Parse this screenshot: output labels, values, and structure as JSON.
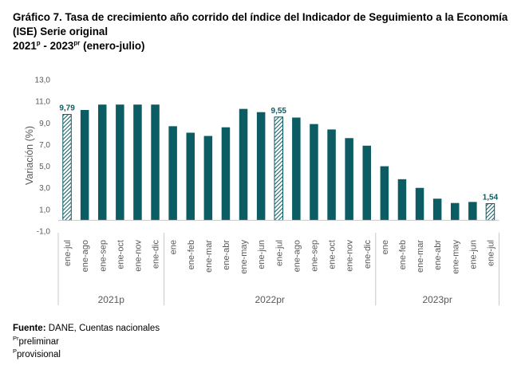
{
  "title": {
    "line1": "Gráfico 7. Tasa de crecimiento año corrido del índice del Indicador de Seguimiento a la Economía",
    "line2": "(ISE) Serie original",
    "line3_year1": "2021",
    "line3_sup1": "p",
    "line3_sep": " - ",
    "line3_year2": "2023",
    "line3_sup2": "pr",
    "line3_rest": " (enero-julio)"
  },
  "chart_data": {
    "type": "bar",
    "ylabel": "Variación (%)",
    "ylim": [
      -1.0,
      13.0
    ],
    "yticks": [
      "13,0",
      "11,0",
      "9,0",
      "7,0",
      "5,0",
      "3,0",
      "1,0",
      "-1,0"
    ],
    "ytick_values": [
      13,
      11,
      9,
      7,
      5,
      3,
      1,
      -1
    ],
    "categories": [
      "ene-jul",
      "ene-ago",
      "ene-sep",
      "ene-oct",
      "ene-nov",
      "ene-dic",
      "ene",
      "ene-feb",
      "ene-mar",
      "ene-abr",
      "ene-may",
      "ene-jun",
      "ene-jul",
      "ene-ago",
      "ene-sep",
      "ene-oct",
      "ene-nov",
      "ene-dic",
      "ene",
      "ene-feb",
      "ene-mar",
      "ene-abr",
      "ene-may",
      "ene-jun",
      "ene-jul"
    ],
    "values": [
      9.79,
      10.2,
      10.7,
      10.7,
      10.7,
      10.7,
      8.7,
      8.1,
      7.8,
      8.6,
      10.3,
      10.0,
      9.55,
      9.5,
      8.9,
      8.4,
      7.6,
      6.9,
      5.0,
      3.8,
      3.0,
      2.0,
      1.6,
      1.7,
      1.54
    ],
    "highlighted": [
      0,
      12,
      24
    ],
    "data_labels": {
      "0": "9,79",
      "12": "9,55",
      "24": "1,54"
    },
    "groups": [
      {
        "label": "2021p",
        "start": 0,
        "end": 5
      },
      {
        "label": "2022pr",
        "start": 6,
        "end": 17
      },
      {
        "label": "2023pr",
        "start": 18,
        "end": 24
      }
    ],
    "colors": {
      "bar": "#0b5c63",
      "axis": "#c8c8c8",
      "text": "#595959",
      "label": "#0b5c63"
    }
  },
  "footer": {
    "source_label": "Fuente:",
    "source_text": " DANE, Cuentas nacionales",
    "note1_sup": "Pr",
    "note1_text": "preliminar",
    "note2_sup": "P",
    "note2_text": "provisional"
  }
}
